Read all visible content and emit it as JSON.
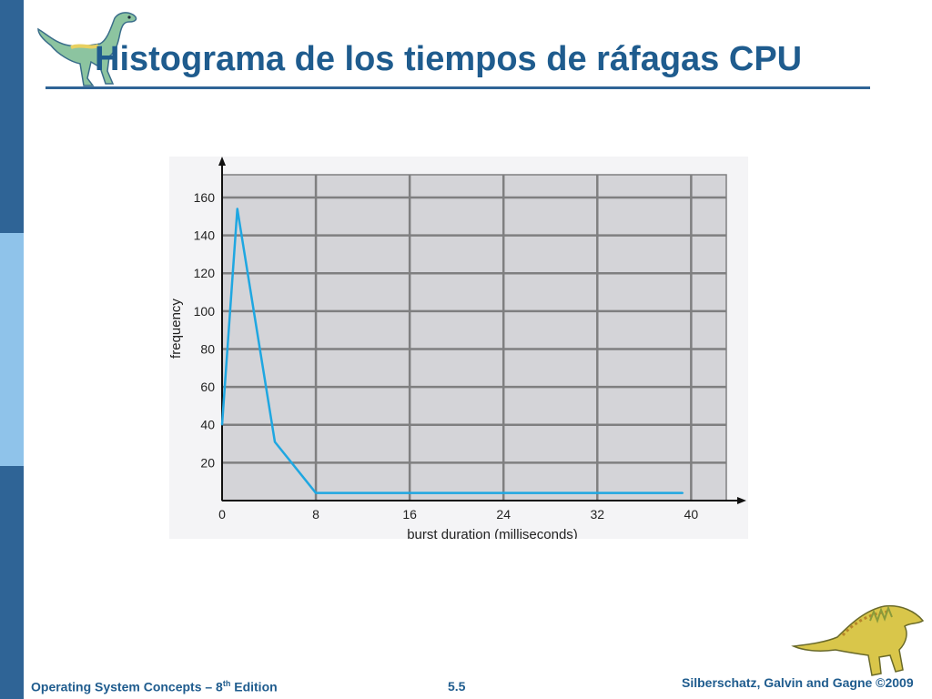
{
  "slide": {
    "title": "Histograma de los tiempos de ráfagas CPU",
    "footer_left_main": "Operating System Concepts – 8",
    "footer_left_sup": "th",
    "footer_left_tail": " Edition",
    "page_number": "5.5",
    "footer_right": "Silberschatz, Galvin and Gagne ©2009"
  },
  "colors": {
    "accent": "#1f5c8e",
    "side_dark": "#2f6496",
    "side_light": "#8fc3ea",
    "plot_bg": "#d4d4d8",
    "grid": "#7f7f80",
    "line": "#1fa7e1"
  },
  "icons": {
    "top": "dinosaur-icon",
    "bottom": "dinosaur-icon"
  },
  "chart_data": {
    "type": "line",
    "title": "",
    "xlabel": "burst duration (milliseconds)",
    "ylabel": "frequency",
    "xlim": [
      0,
      43
    ],
    "ylim": [
      0,
      172
    ],
    "x_ticks": [
      0,
      8,
      16,
      24,
      32,
      40
    ],
    "y_ticks": [
      20,
      40,
      60,
      80,
      100,
      120,
      140,
      160
    ],
    "grid": true,
    "series": [
      {
        "x": [
          0,
          1.3,
          4.5,
          8,
          16,
          24,
          32,
          39.3
        ],
        "y": [
          40,
          154,
          31,
          4,
          4,
          4,
          4,
          4
        ]
      }
    ]
  }
}
